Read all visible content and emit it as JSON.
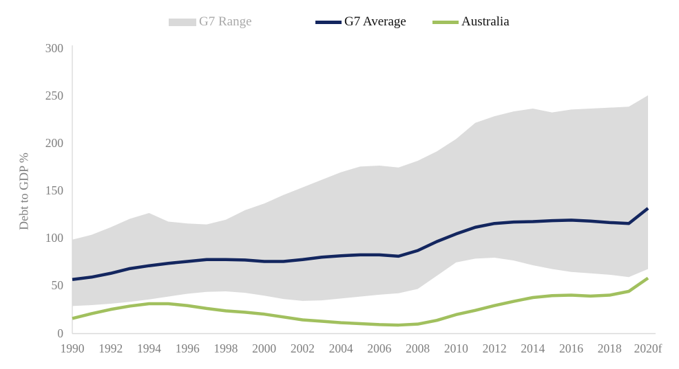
{
  "legend": [
    {
      "label": "G7 Range",
      "swatch": "band",
      "color": "#d9d9d9",
      "text_color": "#a9a9a9"
    },
    {
      "label": "G7 Average",
      "swatch": "line",
      "color": "#13265f",
      "text_color": "#111111"
    },
    {
      "label": "Australia",
      "swatch": "line",
      "color": "#a1c05e",
      "text_color": "#111111"
    }
  ],
  "chart_data": {
    "type": "area+line",
    "title": "",
    "ylabel": "Debt to GDP %",
    "xlabel": "",
    "ylim": [
      0,
      300
    ],
    "yticks": [
      0,
      50,
      100,
      150,
      200,
      250,
      300
    ],
    "grid": false,
    "legend_position": "top",
    "x": [
      1990,
      1991,
      1992,
      1993,
      1994,
      1995,
      1996,
      1997,
      1998,
      1999,
      2000,
      2001,
      2002,
      2003,
      2004,
      2005,
      2006,
      2007,
      2008,
      2009,
      2010,
      2011,
      2012,
      2013,
      2014,
      2015,
      2016,
      2017,
      2018,
      2019,
      2020
    ],
    "x_tick_labels": [
      "1990",
      "1992",
      "1994",
      "1996",
      "1998",
      "2000",
      "2002",
      "2004",
      "2006",
      "2008",
      "2010",
      "2012",
      "2014",
      "2016",
      "2018",
      "2020f"
    ],
    "series": [
      {
        "name": "G7 Range",
        "type": "band",
        "color": "#dcdcdc",
        "upper": [
          99,
          104,
          112,
          121,
          127,
          118,
          116,
          115,
          120,
          130,
          137,
          146,
          154,
          162,
          170,
          176,
          177,
          175,
          182,
          192,
          205,
          222,
          229,
          234,
          237,
          233,
          236,
          237,
          238,
          239,
          251
        ],
        "lower": [
          29,
          30,
          31.5,
          33.5,
          36,
          39,
          42,
          44,
          44.5,
          43,
          40,
          36.5,
          34.5,
          35,
          37,
          39,
          41,
          42.5,
          47,
          61,
          75,
          79,
          80,
          77,
          72,
          68,
          65,
          63.5,
          62,
          59.5,
          68
        ]
      },
      {
        "name": "G7 Average",
        "type": "line",
        "color": "#13265f",
        "width": 4.5,
        "values": [
          57,
          59.5,
          63.5,
          68.5,
          71.5,
          74,
          76,
          78,
          78,
          77.5,
          76,
          76,
          78,
          80.5,
          82,
          83,
          83,
          81.5,
          87.5,
          97,
          105,
          112,
          116,
          117.5,
          118,
          119,
          119.5,
          118.5,
          117,
          116,
          132
        ]
      },
      {
        "name": "Australia",
        "type": "line",
        "color": "#a1c05e",
        "width": 4.5,
        "values": [
          16,
          21,
          25.5,
          29,
          31.5,
          31.5,
          29.5,
          26.5,
          24,
          22.5,
          20.5,
          17.5,
          14.5,
          13,
          11.5,
          10.5,
          9.5,
          9,
          10,
          14,
          20,
          24.5,
          29.5,
          34,
          38,
          40,
          40.5,
          39.5,
          40.5,
          44.5,
          58.5
        ]
      }
    ]
  }
}
